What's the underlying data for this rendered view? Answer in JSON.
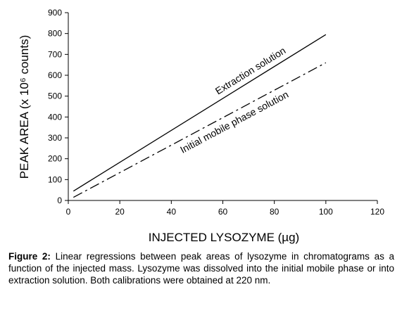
{
  "chart_data": {
    "type": "line",
    "x_label": "INJECTED LYSOZYME (µg)",
    "y_label": "PEAK AREA (x 10⁶ counts)",
    "x": [
      2,
      100
    ],
    "series": [
      {
        "name": "Extraction solution",
        "color": "#000000",
        "line_style": "solid",
        "values": [
          45,
          795
        ]
      },
      {
        "name": "Initial mobile phase solution",
        "color": "#000000",
        "line_style": "dashdot",
        "values": [
          15,
          660
        ]
      }
    ],
    "xlim": [
      0,
      120
    ],
    "xticks": [
      0,
      20,
      40,
      60,
      80,
      100,
      120
    ],
    "ylim": [
      0,
      900
    ],
    "yticks": [
      0,
      100,
      200,
      300,
      400,
      500,
      600,
      700,
      800,
      900
    ],
    "grid": false
  },
  "caption": {
    "label": "Figure 2:",
    "text": "Linear regressions between peak areas of lysozyme in chromatograms as a function of the injected mass. Lysozyme was dissolved into the initial mobile phase or into extraction solution. Both calibrations were obtained at 220 nm."
  }
}
